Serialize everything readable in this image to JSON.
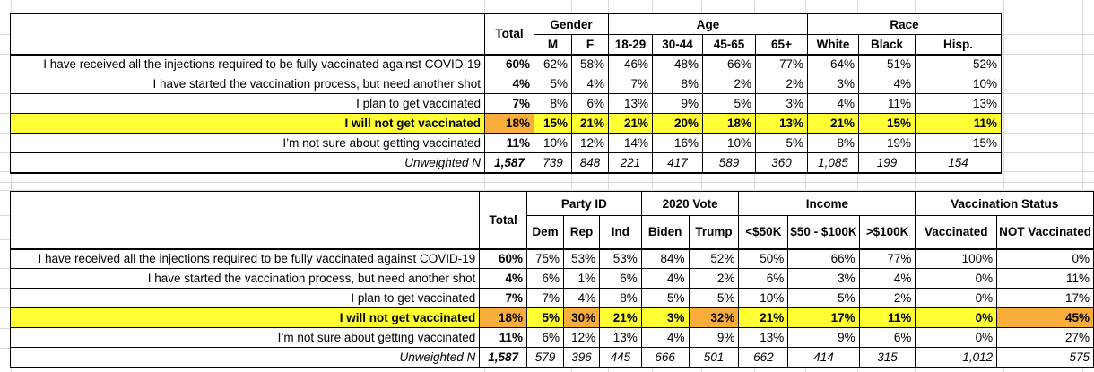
{
  "colors": {
    "highlight_yellow": "#FFFF33",
    "highlight_orange": "#F9AE3C",
    "border_black": "#000000",
    "gridline_gray": "#d9d9d9"
  },
  "table1": {
    "total_label": "Total",
    "groups": [
      {
        "label": "Gender",
        "cols": [
          "M",
          "F"
        ]
      },
      {
        "label": "Age",
        "cols": [
          "18-29",
          "30-44",
          "45-65",
          "65+"
        ]
      },
      {
        "label": "Race",
        "cols": [
          "White",
          "Black",
          "Hisp."
        ]
      }
    ],
    "rows": [
      {
        "label": "I have received all the injections required to be fully vaccinated against COVID-19",
        "values": [
          "60%",
          "62%",
          "58%",
          "46%",
          "48%",
          "66%",
          "77%",
          "64%",
          "51%",
          "52%"
        ]
      },
      {
        "label": "I have started the vaccination process, but need another shot",
        "values": [
          "4%",
          "5%",
          "4%",
          "7%",
          "8%",
          "2%",
          "2%",
          "3%",
          "4%",
          "10%"
        ]
      },
      {
        "label": "I plan to get vaccinated",
        "values": [
          "7%",
          "8%",
          "6%",
          "13%",
          "9%",
          "5%",
          "3%",
          "4%",
          "11%",
          "13%"
        ]
      },
      {
        "label": "I will not get vaccinated",
        "highlight": true,
        "orange_cols": [
          0
        ],
        "values": [
          "18%",
          "15%",
          "21%",
          "21%",
          "20%",
          "18%",
          "13%",
          "21%",
          "15%",
          "11%"
        ]
      },
      {
        "label": "I’m not sure about getting vaccinated",
        "values": [
          "11%",
          "10%",
          "12%",
          "14%",
          "16%",
          "10%",
          "5%",
          "8%",
          "19%",
          "15%"
        ]
      },
      {
        "label": "Unweighted N",
        "n_row": true,
        "values": [
          "1,587",
          "739",
          "848",
          "221",
          "417",
          "589",
          "360",
          "1,085",
          "199",
          "154"
        ]
      }
    ]
  },
  "table2": {
    "total_label": "Total",
    "groups": [
      {
        "label": "Party ID",
        "cols": [
          "Dem",
          "Rep",
          "Ind"
        ]
      },
      {
        "label": "2020 Vote",
        "cols": [
          "Biden",
          "Trump"
        ]
      },
      {
        "label": "Income",
        "cols": [
          "<$50K",
          "$50 -\n$100K",
          ">$100K"
        ]
      },
      {
        "label": "Vaccination Status",
        "cols": [
          "Vaccinated",
          "NOT\nVaccinated"
        ]
      }
    ],
    "rows": [
      {
        "label": "I have received all the injections required to be fully vaccinated against COVID-19",
        "values": [
          "60%",
          "75%",
          "53%",
          "53%",
          "84%",
          "52%",
          "50%",
          "66%",
          "77%",
          "100%",
          "0%"
        ]
      },
      {
        "label": "I have started the vaccination process, but need another shot",
        "values": [
          "4%",
          "6%",
          "1%",
          "6%",
          "4%",
          "2%",
          "6%",
          "3%",
          "4%",
          "0%",
          "11%"
        ]
      },
      {
        "label": "I plan to get vaccinated",
        "values": [
          "7%",
          "7%",
          "4%",
          "8%",
          "5%",
          "5%",
          "10%",
          "5%",
          "2%",
          "0%",
          "17%"
        ]
      },
      {
        "label": "I will not get vaccinated",
        "highlight": true,
        "orange_cols": [
          0,
          2,
          5,
          10
        ],
        "values": [
          "18%",
          "5%",
          "30%",
          "21%",
          "3%",
          "32%",
          "21%",
          "17%",
          "11%",
          "0%",
          "45%"
        ]
      },
      {
        "label": "I’m not sure about getting vaccinated",
        "values": [
          "11%",
          "6%",
          "12%",
          "13%",
          "4%",
          "9%",
          "13%",
          "9%",
          "6%",
          "0%",
          "27%"
        ]
      },
      {
        "label": "Unweighted N",
        "n_row": true,
        "values": [
          "1,587",
          "579",
          "396",
          "445",
          "666",
          "501",
          "662",
          "414",
          "315",
          "1,012",
          "575"
        ]
      }
    ]
  }
}
